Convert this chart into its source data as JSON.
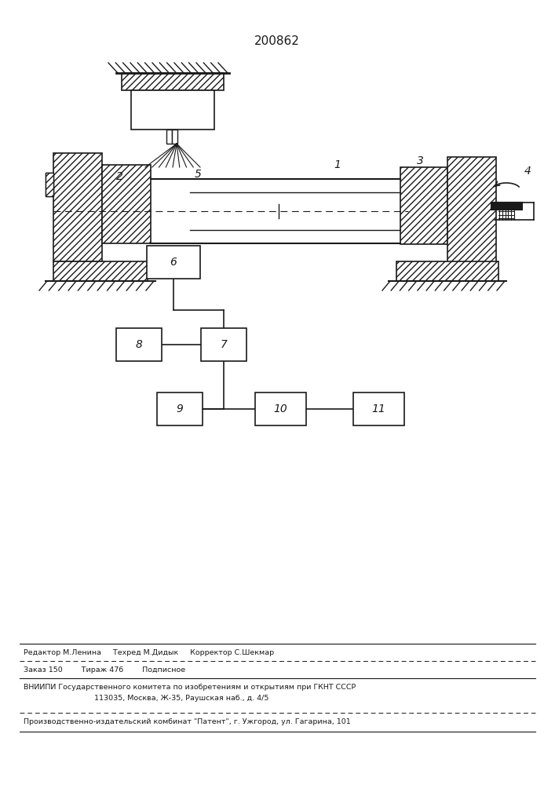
{
  "patent_number": "200862",
  "bg_color": "#ffffff",
  "line_color": "#1a1a1a",
  "footer_line1": "Редактор М.Ленина     Техред М.Дидык     Корректор С.Шекмар",
  "footer_line2": "Заказ 150        Тираж 476        Подписное",
  "footer_line3": "ВНИИПИ Государственного комитета по изобретениям и открытиям при ГКНТ СССР",
  "footer_line4": "113035, Москва, Ж-35, Раушская наб., д. 4/5",
  "footer_line5": "Производственно-издательский комбинат \"Патент\", г. Ужгород, ул. Гагарина, 101"
}
